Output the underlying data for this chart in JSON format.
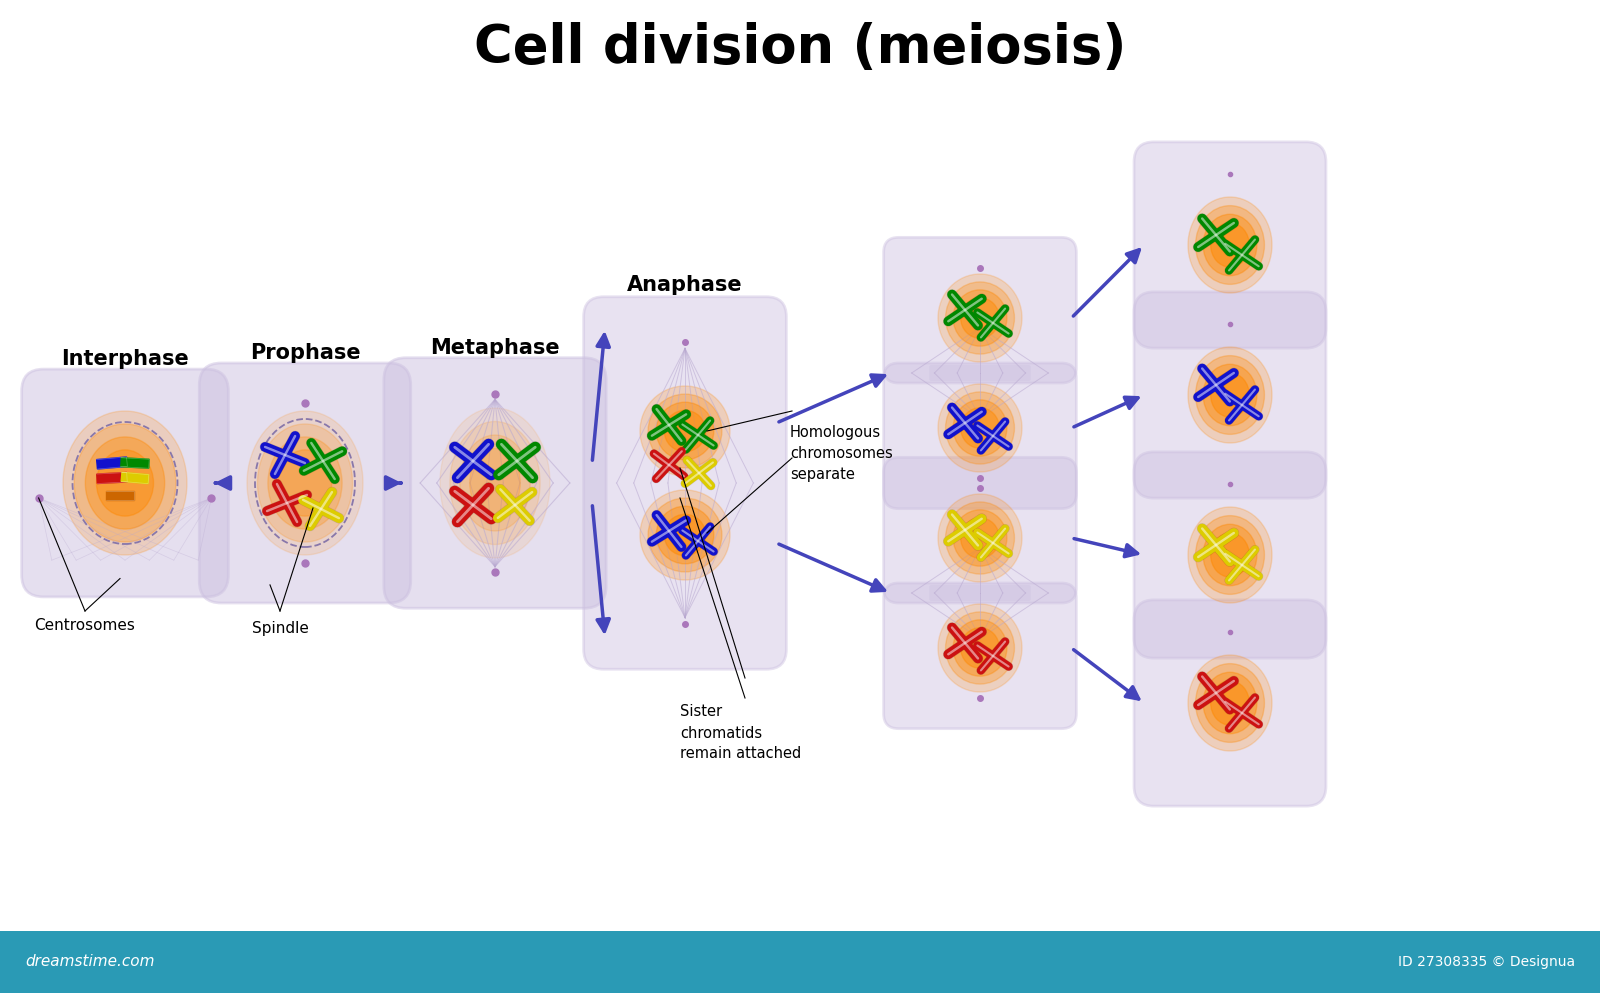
{
  "title": "Cell division (meiosis)",
  "title_fontsize": 38,
  "title_fontweight": "bold",
  "bg_color": "#ffffff",
  "cell_outer_color": "#ccc0e0",
  "cell_outer_alpha": 0.55,
  "arrow_color": "#4444bb",
  "labels": {
    "interphase": "Interphase",
    "prophase": "Prophase",
    "metaphase": "Metaphase",
    "anaphase": "Anaphase",
    "centrosomes": "Centrosomes",
    "spindle": "Spindle",
    "homologous": "Homologous\nchromosomes\nseparate",
    "sister": "Sister\nchromatids\nremain attached"
  },
  "label_fontsize": 15,
  "label_fontweight": "bold",
  "small_label_fontsize": 11,
  "footer_color": "#2a9ab5",
  "footer_text_left": "dreamstime.com",
  "footer_text_right": "ID 27308335 © Designua",
  "blue": "#1111cc",
  "green": "#008800",
  "red": "#cc1111",
  "yellow": "#ddcc00",
  "glow_color": "#ff8800",
  "spindle_color": "#b8a8d0",
  "centrosome_color": "#aa77bb"
}
